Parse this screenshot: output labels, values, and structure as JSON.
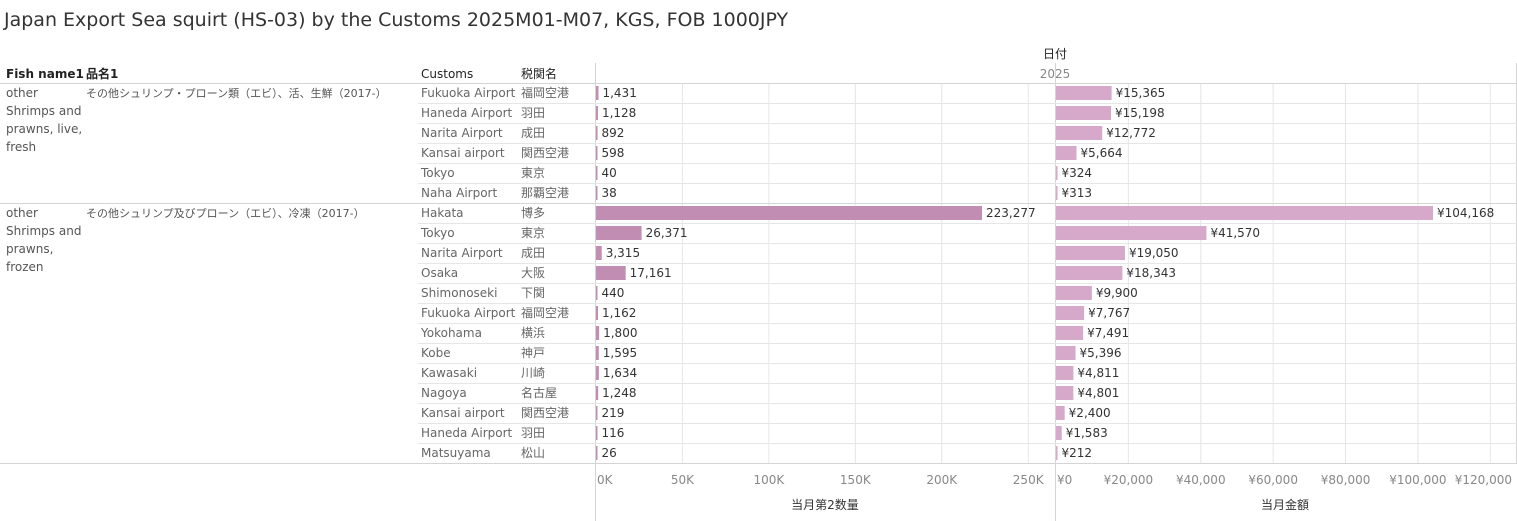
{
  "title": "Japan Export Sea squirt (HS-03) by the Customs 2025M01-M07, KGS, FOB 1000JPY",
  "headers": {
    "fish_name": "Fish name1",
    "hinmei": "品名1",
    "customs": "Customs",
    "zeikan": "税関名",
    "date_field": "日付",
    "year": "2025"
  },
  "colors": {
    "qty_bar": "#c28db2",
    "amt_bar": "#d6a8c9",
    "grid": "#e6e6e6",
    "divider": "#d4d4d4"
  },
  "chart_data": {
    "type": "bar",
    "orientation": "horizontal",
    "measures": [
      {
        "name": "当月第2数量",
        "xlim": [
          0,
          270000
        ],
        "ticks": [
          "0K",
          "50K",
          "100K",
          "150K",
          "200K",
          "250K"
        ]
      },
      {
        "name": "当月金額",
        "xlim": [
          0,
          125000
        ],
        "ticks": [
          "¥0",
          "¥20,000",
          "¥40,000",
          "¥60,000",
          "¥80,000",
          "¥100,000",
          "¥120,000"
        ]
      }
    ],
    "groups": [
      {
        "fish_name": [
          "other",
          "Shrimps and",
          "prawns, live,",
          "fresh"
        ],
        "hinmei": "その他シュリンプ・プローン類（エビ）、活、生鮮（2017-）",
        "rows": [
          {
            "customs": "Fukuoka Airport",
            "zeikan": "福岡空港",
            "qty": 1431,
            "qty_label": "1,431",
            "amount": 15365,
            "amount_label": "¥15,365"
          },
          {
            "customs": "Haneda Airport",
            "zeikan": "羽田",
            "qty": 1128,
            "qty_label": "1,128",
            "amount": 15198,
            "amount_label": "¥15,198"
          },
          {
            "customs": "Narita Airport",
            "zeikan": "成田",
            "qty": 892,
            "qty_label": "892",
            "amount": 12772,
            "amount_label": "¥12,772"
          },
          {
            "customs": "Kansai airport",
            "zeikan": "関西空港",
            "qty": 598,
            "qty_label": "598",
            "amount": 5664,
            "amount_label": "¥5,664"
          },
          {
            "customs": "Tokyo",
            "zeikan": "東京",
            "qty": 40,
            "qty_label": "40",
            "amount": 324,
            "amount_label": "¥324"
          },
          {
            "customs": "Naha Airport",
            "zeikan": "那覇空港",
            "qty": 38,
            "qty_label": "38",
            "amount": 313,
            "amount_label": "¥313"
          }
        ]
      },
      {
        "fish_name": [
          "other",
          "Shrimps and",
          "prawns,",
          "frozen"
        ],
        "hinmei": "その他シュリンプ及びプローン（エビ）、冷凍（2017-）",
        "rows": [
          {
            "customs": "Hakata",
            "zeikan": "博多",
            "qty": 223277,
            "qty_label": "223,277",
            "amount": 104168,
            "amount_label": "¥104,168"
          },
          {
            "customs": "Tokyo",
            "zeikan": "東京",
            "qty": 26371,
            "qty_label": "26,371",
            "amount": 41570,
            "amount_label": "¥41,570"
          },
          {
            "customs": "Narita Airport",
            "zeikan": "成田",
            "qty": 3315,
            "qty_label": "3,315",
            "amount": 19050,
            "amount_label": "¥19,050"
          },
          {
            "customs": "Osaka",
            "zeikan": "大阪",
            "qty": 17161,
            "qty_label": "17,161",
            "amount": 18343,
            "amount_label": "¥18,343"
          },
          {
            "customs": "Shimonoseki",
            "zeikan": "下関",
            "qty": 440,
            "qty_label": "440",
            "amount": 9900,
            "amount_label": "¥9,900"
          },
          {
            "customs": "Fukuoka Airport",
            "zeikan": "福岡空港",
            "qty": 1162,
            "qty_label": "1,162",
            "amount": 7767,
            "amount_label": "¥7,767"
          },
          {
            "customs": "Yokohama",
            "zeikan": "横浜",
            "qty": 1800,
            "qty_label": "1,800",
            "amount": 7491,
            "amount_label": "¥7,491"
          },
          {
            "customs": "Kobe",
            "zeikan": "神戸",
            "qty": 1595,
            "qty_label": "1,595",
            "amount": 5396,
            "amount_label": "¥5,396"
          },
          {
            "customs": "Kawasaki",
            "zeikan": "川崎",
            "qty": 1634,
            "qty_label": "1,634",
            "amount": 4811,
            "amount_label": "¥4,811"
          },
          {
            "customs": "Nagoya",
            "zeikan": "名古屋",
            "qty": 1248,
            "qty_label": "1,248",
            "amount": 4801,
            "amount_label": "¥4,801"
          },
          {
            "customs": "Kansai airport",
            "zeikan": "関西空港",
            "qty": 219,
            "qty_label": "219",
            "amount": 2400,
            "amount_label": "¥2,400"
          },
          {
            "customs": "Haneda Airport",
            "zeikan": "羽田",
            "qty": 116,
            "qty_label": "116",
            "amount": 1583,
            "amount_label": "¥1,583"
          },
          {
            "customs": "Matsuyama",
            "zeikan": "松山",
            "qty": 26,
            "qty_label": "26",
            "amount": 212,
            "amount_label": "¥212"
          }
        ]
      }
    ]
  }
}
